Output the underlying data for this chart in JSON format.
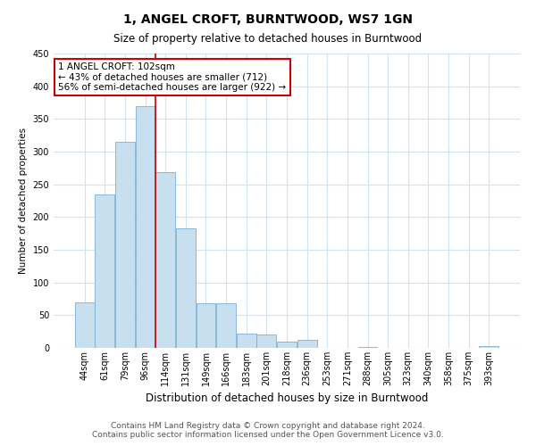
{
  "title": "1, ANGEL CROFT, BURNTWOOD, WS7 1GN",
  "subtitle": "Size of property relative to detached houses in Burntwood",
  "xlabel": "Distribution of detached houses by size in Burntwood",
  "ylabel": "Number of detached properties",
  "footnote1": "Contains HM Land Registry data © Crown copyright and database right 2024.",
  "footnote2": "Contains public sector information licensed under the Open Government Licence v3.0.",
  "bin_labels": [
    "44sqm",
    "61sqm",
    "79sqm",
    "96sqm",
    "114sqm",
    "131sqm",
    "149sqm",
    "166sqm",
    "183sqm",
    "201sqm",
    "218sqm",
    "236sqm",
    "253sqm",
    "271sqm",
    "288sqm",
    "305sqm",
    "323sqm",
    "340sqm",
    "358sqm",
    "375sqm",
    "393sqm"
  ],
  "bar_values": [
    70,
    235,
    315,
    370,
    268,
    183,
    68,
    68,
    22,
    21,
    9,
    12,
    0,
    0,
    2,
    0,
    0,
    0,
    0,
    0,
    3
  ],
  "bar_color": "#c8dff0",
  "bar_edge_color": "#7aafd4",
  "vline_x_index": 3.5,
  "vline_color": "#cc0000",
  "annotation_text1": "1 ANGEL CROFT: 102sqm",
  "annotation_text2": "← 43% of detached houses are smaller (712)",
  "annotation_text3": "56% of semi-detached houses are larger (922) →",
  "annotation_box_facecolor": "#ffffff",
  "annotation_box_edgecolor": "#cc0000",
  "ylim": [
    0,
    450
  ],
  "yticks": [
    0,
    50,
    100,
    150,
    200,
    250,
    300,
    350,
    400,
    450
  ],
  "grid_color": "#d0e4f0",
  "title_fontsize": 10,
  "subtitle_fontsize": 8.5,
  "xlabel_fontsize": 8.5,
  "ylabel_fontsize": 7.5,
  "tick_fontsize": 7,
  "annot_fontsize": 7.5,
  "footnote_fontsize": 6.5
}
